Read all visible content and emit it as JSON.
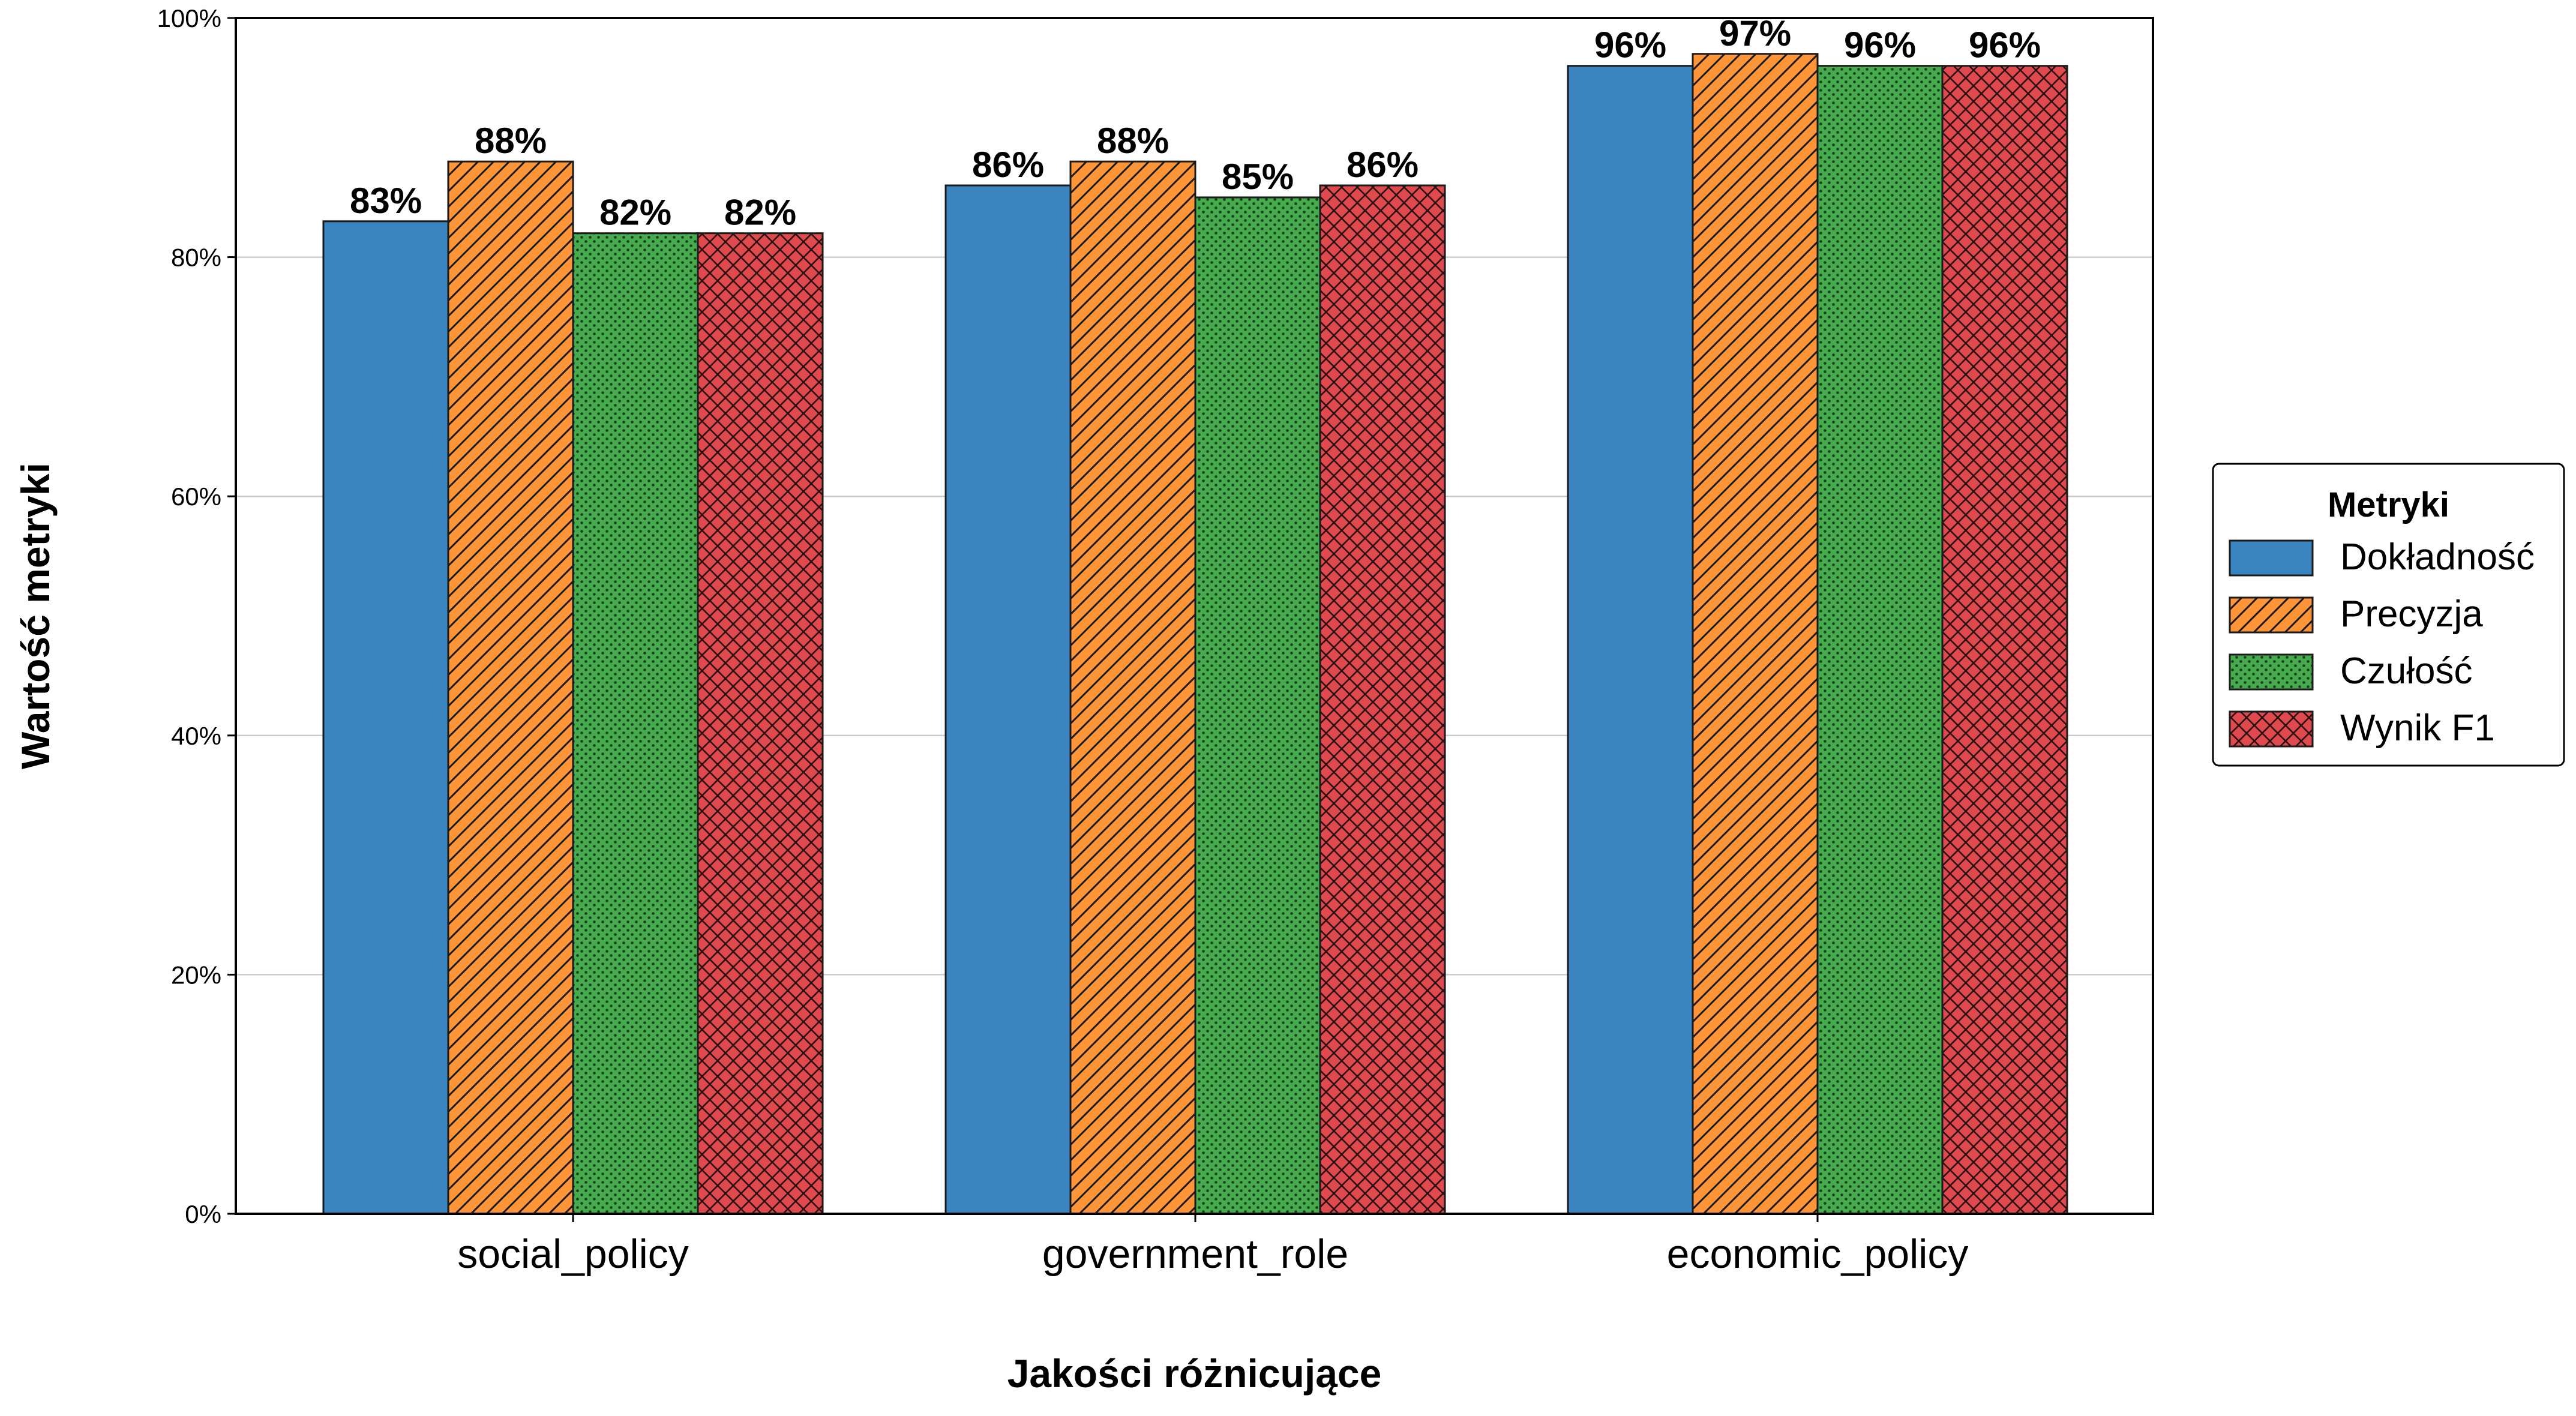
{
  "chart_data": {
    "type": "bar",
    "xlabel": "Jakości różnicujące",
    "ylabel": "Wartość metryki",
    "categories": [
      "social_policy",
      "government_role",
      "economic_policy"
    ],
    "series": [
      {
        "name": "Dokładność",
        "values": [
          83,
          86,
          96
        ],
        "labels": [
          "83%",
          "86%",
          "96%"
        ],
        "color": "#3a85c0",
        "hatch": "none"
      },
      {
        "name": "Precyzja",
        "values": [
          88,
          88,
          97
        ],
        "labels": [
          "88%",
          "88%",
          "97%"
        ],
        "color": "#ff9538",
        "hatch": "diagonal"
      },
      {
        "name": "Czułość",
        "values": [
          82,
          85,
          96
        ],
        "labels": [
          "82%",
          "85%",
          "96%"
        ],
        "color": "#45ab4c",
        "hatch": "dots"
      },
      {
        "name": "Wynik F1",
        "values": [
          82,
          86,
          96
        ],
        "labels": [
          "82%",
          "86%",
          "96%"
        ],
        "color": "#e04a4f",
        "hatch": "crosshatch"
      }
    ],
    "ylim": [
      0,
      100
    ],
    "yticks": [
      0,
      20,
      40,
      60,
      80,
      100
    ],
    "ytick_labels": [
      "0%",
      "20%",
      "40%",
      "60%",
      "80%",
      "100%"
    ],
    "grid": "horizontal",
    "legend": {
      "title": "Metryki",
      "placement": "right"
    }
  }
}
